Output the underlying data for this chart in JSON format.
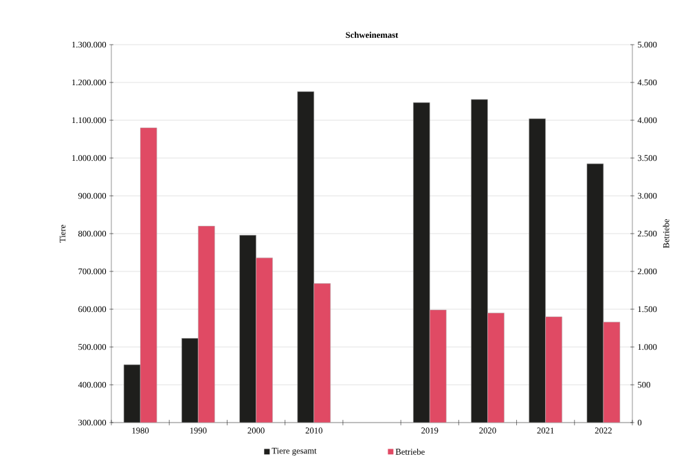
{
  "chart_data": {
    "type": "bar",
    "title": "Schweinemast",
    "categories": [
      "1980",
      "1990",
      "2000",
      "2010",
      null,
      "2019",
      "2020",
      "2021",
      "2022"
    ],
    "series": [
      {
        "name": "Tiere gesamt",
        "color": "#1e1e1c",
        "values": [
          453000,
          523000,
          796000,
          1176000,
          null,
          1147000,
          1155000,
          1104000,
          985000
        ]
      },
      {
        "name": "Betriebe",
        "color": "#e04a64",
        "axis": "y2",
        "values": [
          3900,
          2600,
          2180,
          1840,
          null,
          1490,
          1450,
          1400,
          1330
        ]
      }
    ],
    "ylabel": "Tiere",
    "y2label": "Betriebe",
    "ylim": [
      300000,
      1300000
    ],
    "yticks": [
      {
        "value": 300000,
        "label": "300.000"
      },
      {
        "value": 400000,
        "label": "400.000"
      },
      {
        "value": 500000,
        "label": "500.000"
      },
      {
        "value": 600000,
        "label": "600.000"
      },
      {
        "value": 700000,
        "label": "700.000"
      },
      {
        "value": 800000,
        "label": "800.000"
      },
      {
        "value": 900000,
        "label": "900.000"
      },
      {
        "value": 1000000,
        "label": "1.000.000"
      },
      {
        "value": 1100000,
        "label": "1.100.000"
      },
      {
        "value": 1200000,
        "label": "1.200.000"
      },
      {
        "value": 1300000,
        "label": "1.300.000"
      }
    ],
    "y2lim": [
      0,
      5000
    ],
    "y2ticks": [
      0,
      500,
      {
        "value": 1000,
        "label": "1.000"
      },
      {
        "value": 1500,
        "label": "1.500"
      },
      {
        "value": 2000,
        "label": "2.000"
      },
      {
        "value": 2500,
        "label": "2.500"
      },
      {
        "value": 3000,
        "label": "3.000"
      },
      {
        "value": 3500,
        "label": "3.500"
      },
      {
        "value": 4000,
        "label": "4.000"
      },
      {
        "value": 4500,
        "label": "4.500"
      },
      {
        "value": 5000,
        "label": "5.000"
      }
    ],
    "grid": "y",
    "legend": "bottom"
  }
}
